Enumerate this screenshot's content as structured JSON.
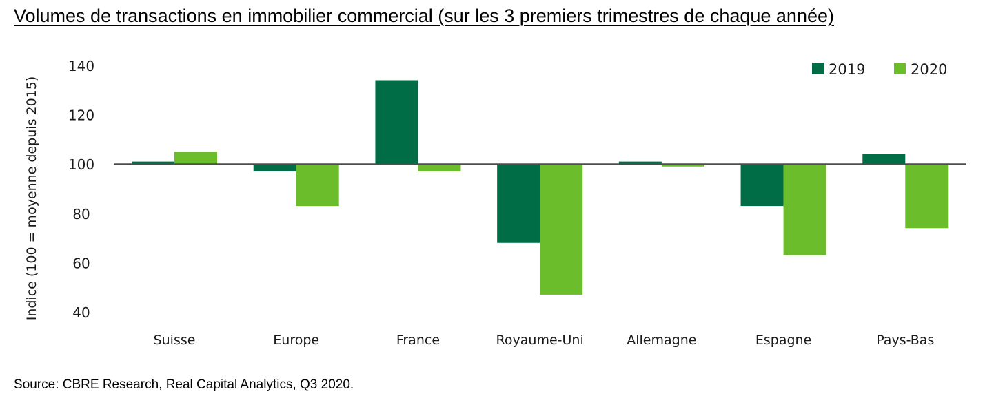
{
  "title": "Volumes de transactions en immobilier commercial (sur les 3 premiers trimestres de chaque année)",
  "source": "Source: CBRE Research, Real Capital Analytics, Q3 2020.",
  "chart_data": {
    "type": "bar",
    "categories": [
      "Suisse",
      "Europe",
      "France",
      "Royaume-Uni",
      "Allemagne",
      "Espagne",
      "Pays-Bas"
    ],
    "series": [
      {
        "name": "2019",
        "color": "#006d46",
        "values": [
          101,
          97,
          134,
          68,
          101,
          83,
          104
        ]
      },
      {
        "name": "2020",
        "color": "#6bbd2b",
        "values": [
          105,
          83,
          97,
          47,
          99,
          63,
          74
        ]
      }
    ],
    "baseline": 100,
    "ylabel": "Indice (100 = moyenne depuis 2015)",
    "xlabel": "",
    "ylim": [
      40,
      140
    ],
    "yticks": [
      40,
      60,
      80,
      100,
      120,
      140
    ],
    "legend_position": "top-right",
    "grid": false
  }
}
